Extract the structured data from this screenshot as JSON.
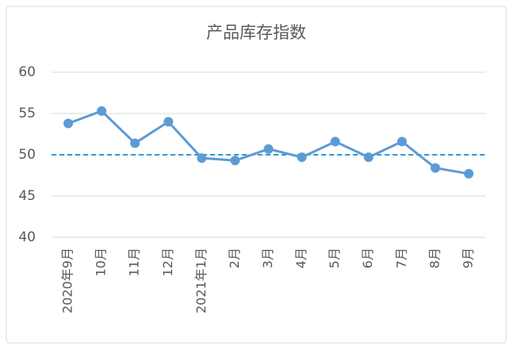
{
  "chart_data": {
    "type": "line",
    "title": "产品库存指数",
    "categories": [
      "2020年9月",
      "10月",
      "11月",
      "12月",
      "2021年1月",
      "2月",
      "3月",
      "4月",
      "5月",
      "6月",
      "7月",
      "8月",
      "9月"
    ],
    "values": [
      53.8,
      55.3,
      51.4,
      54.0,
      49.6,
      49.3,
      50.7,
      49.7,
      51.6,
      49.7,
      51.6,
      48.4,
      47.7
    ],
    "color": "#5b9bd5",
    "ylim": [
      40,
      60
    ],
    "yticks": [
      40,
      45,
      50,
      55,
      60
    ],
    "grid": true,
    "reference_line": 50,
    "reference_color": "#2e9bd6"
  }
}
